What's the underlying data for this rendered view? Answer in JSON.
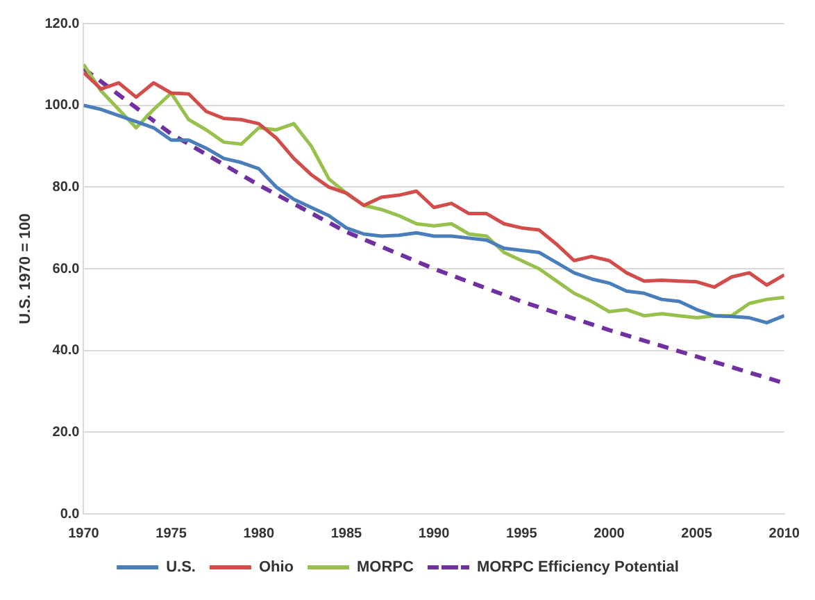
{
  "chart_data": {
    "type": "line",
    "ylabel": "U.S. 1970 = 100",
    "x": [
      1970,
      1971,
      1972,
      1973,
      1974,
      1975,
      1976,
      1977,
      1978,
      1979,
      1980,
      1981,
      1982,
      1983,
      1984,
      1985,
      1986,
      1987,
      1988,
      1989,
      1990,
      1991,
      1992,
      1993,
      1994,
      1995,
      1996,
      1997,
      1998,
      1999,
      2000,
      2001,
      2002,
      2003,
      2004,
      2005,
      2006,
      2007,
      2008,
      2009,
      2010
    ],
    "series": [
      {
        "name": "U.S.",
        "color": "#4a7ebb",
        "values": [
          100,
          99,
          97.5,
          96,
          94.5,
          91.5,
          91.5,
          89.5,
          87,
          86,
          84.5,
          80,
          77,
          75,
          73,
          70,
          68.5,
          68,
          68.2,
          68.8,
          68,
          68,
          67.5,
          67,
          65,
          64.5,
          64,
          61.5,
          59,
          57.5,
          56.5,
          54.5,
          54,
          52.5,
          52,
          50,
          48.5,
          48.3,
          48,
          46.8,
          48.5
        ]
      },
      {
        "name": "Ohio",
        "color": "#d24d4a",
        "values": [
          108,
          104,
          105.5,
          102,
          105.5,
          103,
          102.8,
          98.5,
          96.8,
          96.5,
          95.5,
          92,
          87,
          83,
          80,
          78.5,
          75.5,
          77.5,
          78,
          79,
          75,
          76,
          73.5,
          73.5,
          71,
          70,
          69.5,
          66,
          62,
          63,
          62,
          59,
          57,
          57.2,
          57,
          56.8,
          55.5,
          58,
          59,
          56,
          58.5
        ]
      },
      {
        "name": "MORPC",
        "color": "#98c04c",
        "values": [
          110,
          103.5,
          99,
          94.5,
          99,
          103,
          96.5,
          94,
          91,
          90.5,
          94.5,
          94,
          95.5,
          90,
          82,
          78.5,
          75.5,
          74.5,
          73,
          71,
          70.5,
          71,
          68.5,
          68,
          64,
          62,
          60,
          57,
          54,
          52,
          49.5,
          50,
          48.5,
          49,
          48.5,
          48,
          48.5,
          48.5,
          51.5,
          52.5,
          53
        ]
      },
      {
        "name": "MORPC Efficiency Potential",
        "color": "#7030a0",
        "line_style": "dashed",
        "x": [
          1970,
          1975,
          1980,
          1985,
          1990,
          1995,
          2000,
          2005,
          2010
        ],
        "values": [
          109,
          93,
          80.5,
          69,
          60,
          52,
          45,
          38.5,
          32
        ]
      }
    ],
    "xlim": [
      1970,
      2010
    ],
    "xticks": [
      1970,
      1975,
      1980,
      1985,
      1990,
      1995,
      2000,
      2005,
      2010
    ],
    "ylim": [
      0,
      120
    ],
    "yticks": [
      {
        "value": 0,
        "label": "0.0"
      },
      {
        "value": 20,
        "label": "20.0"
      },
      {
        "value": 40,
        "label": "40.0"
      },
      {
        "value": 60,
        "label": "60.0"
      },
      {
        "value": 80,
        "label": "80.0"
      },
      {
        "value": 100,
        "label": "100.0"
      },
      {
        "value": 120,
        "label": "120.0"
      }
    ],
    "grid": "y",
    "legend": "bottom",
    "marker": "none"
  }
}
